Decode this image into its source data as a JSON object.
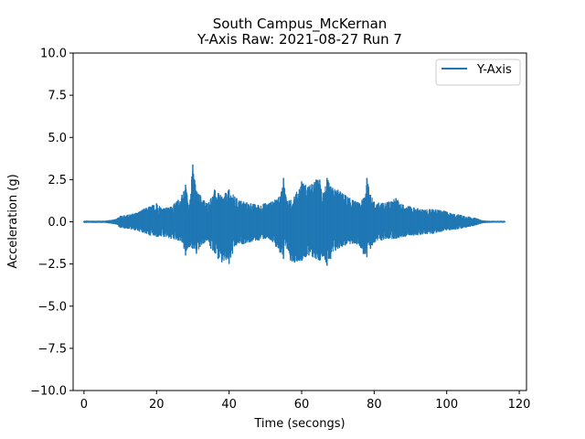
{
  "chart_data": {
    "type": "line",
    "title": "South Campus_McKernan",
    "subtitle": "Y-Axis Raw: 2021-08-27 Run 7",
    "xlabel": "Time (secongs)",
    "ylabel": "Acceleration (g)",
    "xlim": [
      -3,
      122
    ],
    "ylim": [
      -10,
      10
    ],
    "xticks": [
      0,
      20,
      40,
      60,
      80,
      100,
      120
    ],
    "yticks": [
      -10.0,
      -7.5,
      -5.0,
      -2.5,
      0.0,
      2.5,
      5.0,
      7.5,
      10.0
    ],
    "xtick_labels": [
      "0",
      "20",
      "40",
      "60",
      "80",
      "100",
      "120"
    ],
    "ytick_labels": [
      "−10.0",
      "−7.5",
      "−5.0",
      "−2.5",
      "0.0",
      "2.5",
      "5.0",
      "7.5",
      "10.0"
    ],
    "grid": false,
    "legend_position": "top-right",
    "series": [
      {
        "name": "Y-Axis",
        "color": "#1f77b4",
        "x_range": [
          0,
          116
        ],
        "envelope": {
          "t": [
            0,
            6,
            7,
            9,
            10,
            12,
            14,
            16,
            18,
            20,
            22,
            24,
            26,
            27,
            28,
            29,
            30,
            31,
            32,
            34,
            35,
            36,
            37,
            38,
            40,
            42,
            44,
            46,
            48,
            50,
            52,
            54,
            55,
            56,
            57,
            58,
            60,
            62,
            64,
            65,
            66,
            67,
            68,
            70,
            72,
            74,
            76,
            77,
            78,
            79,
            80,
            82,
            84,
            86,
            88,
            90,
            92,
            94,
            96,
            98,
            100,
            102,
            104,
            106,
            108,
            110,
            112,
            116
          ],
          "upper": [
            0.04,
            0.04,
            0.08,
            0.15,
            0.35,
            0.4,
            0.5,
            0.7,
            0.9,
            1.1,
            0.8,
            0.9,
            1.3,
            1.6,
            2.2,
            1.0,
            3.4,
            1.8,
            1.6,
            1.1,
            1.4,
            1.9,
            1.7,
            1.5,
            1.9,
            1.4,
            1.2,
            1.1,
            1.0,
            1.1,
            1.2,
            1.5,
            2.6,
            1.2,
            1.3,
            1.5,
            2.4,
            2.1,
            2.5,
            2.5,
            1.7,
            2.6,
            2.1,
            1.9,
            1.6,
            1.3,
            1.1,
            1.4,
            2.6,
            1.6,
            1.2,
            1.1,
            1.2,
            1.4,
            1.0,
            0.9,
            0.8,
            0.7,
            0.75,
            0.7,
            0.6,
            0.45,
            0.4,
            0.3,
            0.2,
            0.06,
            0.03,
            0.03
          ],
          "lower": [
            -0.04,
            -0.04,
            -0.08,
            -0.15,
            -0.35,
            -0.4,
            -0.5,
            -0.6,
            -0.8,
            -0.9,
            -0.9,
            -1.0,
            -1.1,
            -1.2,
            -2.0,
            -1.5,
            -1.6,
            -1.9,
            -1.5,
            -1.1,
            -1.6,
            -1.8,
            -2.2,
            -2.4,
            -2.5,
            -1.4,
            -1.3,
            -1.2,
            -1.1,
            -1.0,
            -1.2,
            -1.8,
            -2.2,
            -1.6,
            -2.3,
            -2.4,
            -2.3,
            -2.0,
            -2.2,
            -2.3,
            -2.0,
            -2.6,
            -2.2,
            -1.6,
            -1.4,
            -1.3,
            -1.4,
            -1.9,
            -2.1,
            -1.6,
            -1.2,
            -1.1,
            -1.0,
            -1.0,
            -0.9,
            -0.8,
            -0.8,
            -0.7,
            -0.7,
            -0.6,
            -0.5,
            -0.45,
            -0.4,
            -0.3,
            -0.2,
            -0.06,
            -0.03,
            -0.03
          ]
        }
      }
    ]
  }
}
